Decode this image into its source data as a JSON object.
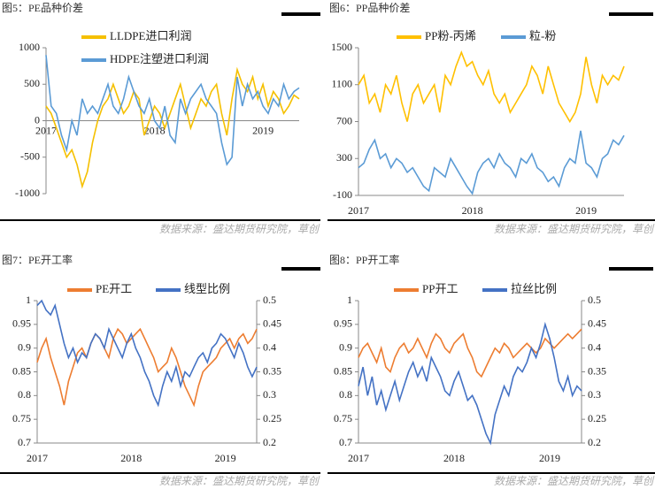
{
  "chart_data": [
    {
      "type": "line",
      "title": "图5：PE品种价差",
      "source": "数据来源：盛达期货研究院，草创",
      "categories": [
        "2017",
        null,
        null,
        null,
        null,
        null,
        null,
        null,
        null,
        null,
        null,
        null,
        null,
        null,
        null,
        null,
        null,
        null,
        null,
        null,
        null,
        "2018",
        null,
        null,
        null,
        null,
        null,
        null,
        null,
        null,
        null,
        null,
        null,
        null,
        null,
        null,
        null,
        null,
        null,
        null,
        null,
        null,
        "2019",
        null,
        null,
        null,
        null,
        null,
        null,
        null
      ],
      "ylim": [
        -1000,
        1000
      ],
      "yticks": [
        -1000,
        -500,
        0,
        500,
        1000
      ],
      "series": [
        {
          "name": "LLDPE进口利润",
          "color": "#f5c000",
          "values": [
            200,
            100,
            -100,
            -300,
            -500,
            -400,
            -600,
            -900,
            -700,
            -300,
            0,
            200,
            300,
            500,
            300,
            100,
            200,
            400,
            300,
            -200,
            0,
            200,
            100,
            -100,
            100,
            300,
            500,
            200,
            -100,
            100,
            300,
            200,
            400,
            500,
            100,
            -200,
            300,
            700,
            500,
            400,
            600,
            300,
            500,
            200,
            400,
            300,
            100,
            200,
            350,
            300
          ]
        },
        {
          "name": "HDPE注塑进口利润",
          "color": "#5b9bd5",
          "values": [
            900,
            200,
            100,
            -200,
            -400,
            0,
            -200,
            300,
            100,
            200,
            100,
            300,
            500,
            200,
            100,
            300,
            600,
            400,
            200,
            100,
            300,
            0,
            -100,
            200,
            -200,
            -300,
            300,
            100,
            300,
            400,
            500,
            300,
            200,
            100,
            -300,
            -600,
            -500,
            600,
            200,
            500,
            300,
            400,
            200,
            100,
            300,
            200,
            500,
            300,
            400,
            450
          ]
        }
      ]
    },
    {
      "type": "line",
      "title": "图6：PP品种价差",
      "source": "数据来源：盛达期货研究院，草创",
      "categories": [
        "2017",
        null,
        null,
        null,
        null,
        null,
        null,
        null,
        null,
        null,
        null,
        null,
        null,
        null,
        null,
        null,
        null,
        null,
        null,
        null,
        null,
        "2018",
        null,
        null,
        null,
        null,
        null,
        null,
        null,
        null,
        null,
        null,
        null,
        null,
        null,
        null,
        null,
        null,
        null,
        null,
        null,
        null,
        "2019",
        null,
        null,
        null,
        null,
        null,
        null,
        null
      ],
      "ylim": [
        -100,
        1500
      ],
      "yticks": [
        -100,
        300,
        700,
        1100,
        1500
      ],
      "series": [
        {
          "name": "PP粉-丙烯",
          "color": "#ffc000",
          "values": [
            1100,
            1200,
            900,
            1000,
            800,
            1100,
            1000,
            1200,
            900,
            700,
            1000,
            1100,
            900,
            1000,
            1100,
            800,
            1200,
            1100,
            1300,
            1450,
            1300,
            1350,
            1200,
            1100,
            1250,
            1000,
            900,
            1000,
            800,
            900,
            1000,
            1100,
            1300,
            1200,
            1000,
            1300,
            1100,
            900,
            800,
            700,
            800,
            1000,
            1400,
            1100,
            900,
            1200,
            1100,
            1200,
            1150,
            1300
          ]
        },
        {
          "name": "粒-粉",
          "color": "#5b9bd5",
          "values": [
            200,
            250,
            400,
            500,
            300,
            350,
            200,
            300,
            250,
            150,
            200,
            100,
            0,
            -50,
            200,
            150,
            100,
            300,
            200,
            100,
            0,
            -80,
            150,
            250,
            300,
            200,
            350,
            250,
            200,
            100,
            300,
            250,
            350,
            200,
            150,
            50,
            100,
            0,
            200,
            300,
            250,
            600,
            250,
            200,
            100,
            300,
            350,
            500,
            450,
            550
          ]
        }
      ]
    },
    {
      "type": "line",
      "title": "图7：PE开工率",
      "source": "数据来源：盛达期货研究院，草创",
      "categories": [
        "2017",
        null,
        null,
        null,
        null,
        null,
        null,
        null,
        null,
        null,
        null,
        null,
        null,
        null,
        null,
        null,
        null,
        null,
        null,
        null,
        null,
        "2018",
        null,
        null,
        null,
        null,
        null,
        null,
        null,
        null,
        null,
        null,
        null,
        null,
        null,
        null,
        null,
        null,
        null,
        null,
        null,
        null,
        "2019",
        null,
        null,
        null,
        null,
        null,
        null,
        null
      ],
      "ylim": [
        0.7,
        1
      ],
      "yticks": [
        0.7,
        0.75,
        0.8,
        0.85,
        0.9,
        0.95,
        1
      ],
      "y2lim": [
        0.2,
        0.5
      ],
      "y2ticks": [
        0.2,
        0.25,
        0.3,
        0.35,
        0.4,
        0.45,
        0.5
      ],
      "series": [
        {
          "name": "PE开工",
          "color": "#ed7d31",
          "values": [
            0.87,
            0.9,
            0.92,
            0.88,
            0.85,
            0.82,
            0.78,
            0.83,
            0.86,
            0.89,
            0.9,
            0.88,
            0.91,
            0.93,
            0.92,
            0.9,
            0.88,
            0.92,
            0.94,
            0.93,
            0.91,
            0.92,
            0.93,
            0.94,
            0.92,
            0.9,
            0.88,
            0.85,
            0.86,
            0.87,
            0.9,
            0.88,
            0.85,
            0.82,
            0.8,
            0.78,
            0.82,
            0.85,
            0.86,
            0.87,
            0.88,
            0.9,
            0.91,
            0.92,
            0.9,
            0.92,
            0.93,
            0.91,
            0.92,
            0.94
          ]
        },
        {
          "name": "线型比例",
          "color": "#4472c4",
          "axis": "y2",
          "values": [
            0.49,
            0.5,
            0.48,
            0.47,
            0.49,
            0.45,
            0.41,
            0.38,
            0.4,
            0.37,
            0.39,
            0.38,
            0.41,
            0.43,
            0.42,
            0.4,
            0.44,
            0.42,
            0.4,
            0.38,
            0.41,
            0.43,
            0.4,
            0.38,
            0.35,
            0.33,
            0.3,
            0.28,
            0.32,
            0.35,
            0.33,
            0.36,
            0.32,
            0.35,
            0.34,
            0.36,
            0.38,
            0.39,
            0.37,
            0.4,
            0.41,
            0.43,
            0.42,
            0.4,
            0.38,
            0.41,
            0.39,
            0.36,
            0.34,
            0.36
          ]
        }
      ]
    },
    {
      "type": "line",
      "title": "图8：PP开工率",
      "source": "数据来源：盛达期货研究院，草创",
      "categories": [
        "2017",
        null,
        null,
        null,
        null,
        null,
        null,
        null,
        null,
        null,
        null,
        null,
        null,
        null,
        null,
        null,
        null,
        null,
        null,
        null,
        null,
        "2018",
        null,
        null,
        null,
        null,
        null,
        null,
        null,
        null,
        null,
        null,
        null,
        null,
        null,
        null,
        null,
        null,
        null,
        null,
        null,
        null,
        "2019",
        null,
        null,
        null,
        null,
        null,
        null,
        null
      ],
      "ylim": [
        0.7,
        1
      ],
      "yticks": [
        0.7,
        0.75,
        0.8,
        0.85,
        0.9,
        0.95,
        1
      ],
      "y2lim": [
        0.2,
        0.5
      ],
      "y2ticks": [
        0.2,
        0.25,
        0.3,
        0.35,
        0.4,
        0.45,
        0.5
      ],
      "series": [
        {
          "name": "PP开工",
          "color": "#ed7d31",
          "values": [
            0.88,
            0.9,
            0.91,
            0.89,
            0.87,
            0.9,
            0.86,
            0.85,
            0.88,
            0.9,
            0.91,
            0.89,
            0.9,
            0.92,
            0.9,
            0.88,
            0.91,
            0.93,
            0.92,
            0.9,
            0.89,
            0.91,
            0.92,
            0.93,
            0.9,
            0.88,
            0.85,
            0.84,
            0.86,
            0.88,
            0.9,
            0.89,
            0.91,
            0.9,
            0.88,
            0.89,
            0.9,
            0.91,
            0.9,
            0.89,
            0.9,
            0.92,
            0.91,
            0.9,
            0.91,
            0.92,
            0.93,
            0.92,
            0.93,
            0.94
          ]
        },
        {
          "name": "拉丝比例",
          "color": "#4472c4",
          "axis": "y2",
          "values": [
            0.32,
            0.36,
            0.3,
            0.34,
            0.28,
            0.31,
            0.27,
            0.3,
            0.33,
            0.29,
            0.32,
            0.35,
            0.37,
            0.34,
            0.36,
            0.33,
            0.38,
            0.36,
            0.34,
            0.31,
            0.3,
            0.33,
            0.35,
            0.32,
            0.29,
            0.3,
            0.28,
            0.25,
            0.22,
            0.2,
            0.26,
            0.29,
            0.32,
            0.3,
            0.34,
            0.36,
            0.35,
            0.37,
            0.4,
            0.38,
            0.41,
            0.45,
            0.42,
            0.38,
            0.33,
            0.31,
            0.34,
            0.3,
            0.32,
            0.31
          ]
        }
      ]
    }
  ]
}
